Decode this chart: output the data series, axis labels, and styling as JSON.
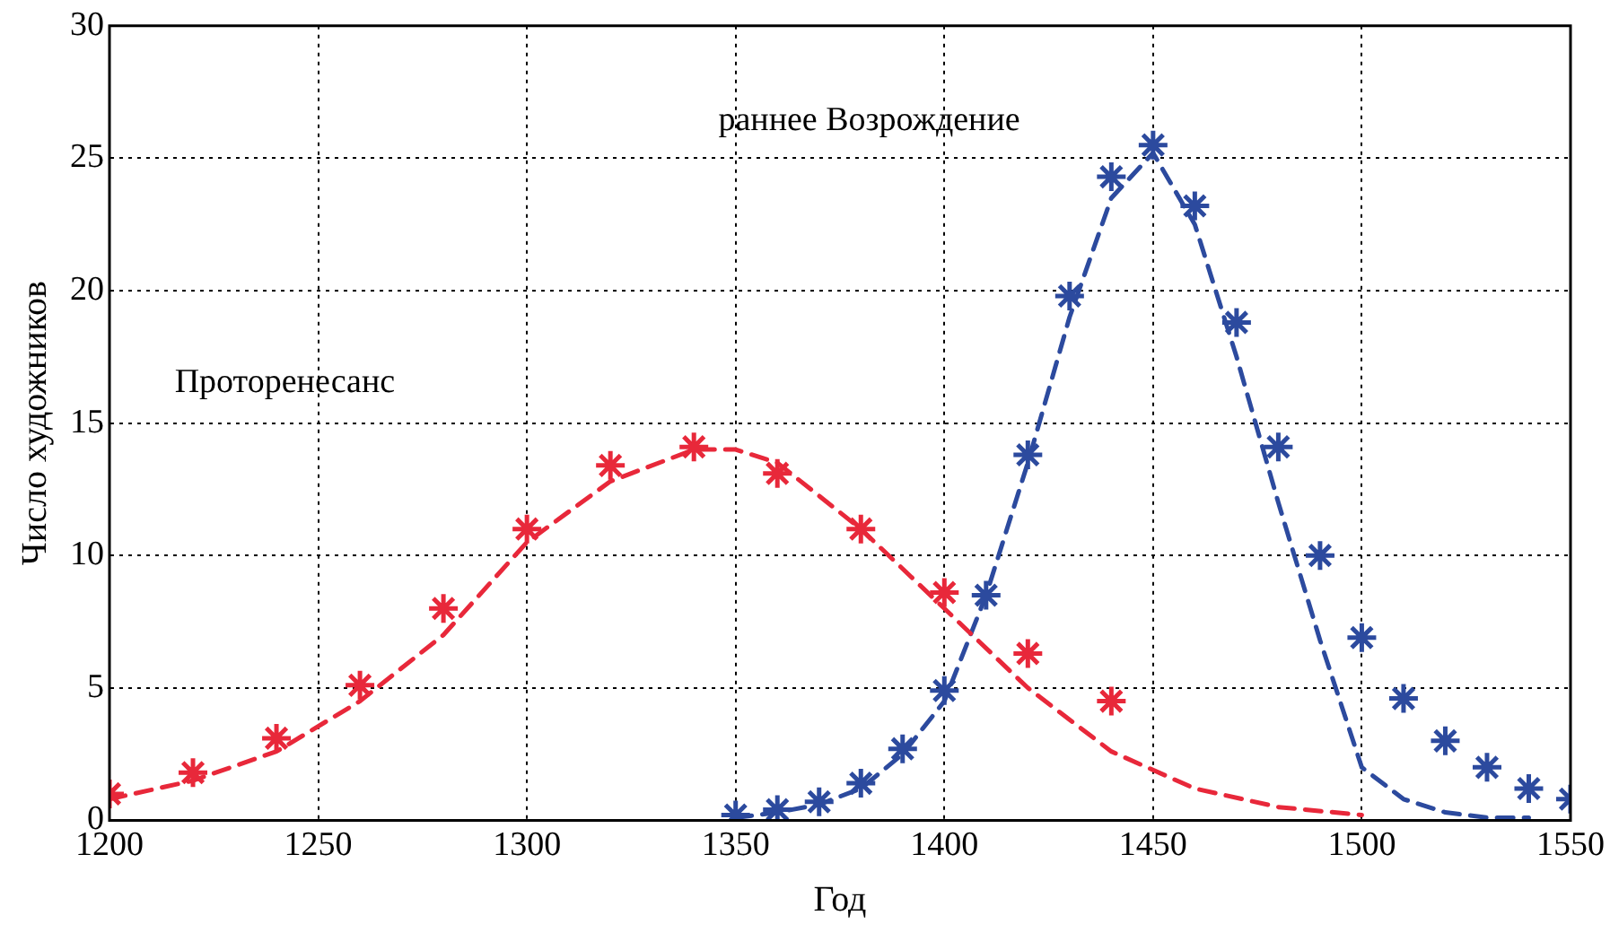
{
  "chart_data": {
    "type": "scatter",
    "xlabel": "Год",
    "ylabel": "Число художников",
    "xlim": [
      1200,
      1550
    ],
    "ylim": [
      0,
      30
    ],
    "xticks": [
      1200,
      1250,
      1300,
      1350,
      1400,
      1450,
      1500,
      1550
    ],
    "yticks": [
      0,
      5,
      10,
      15,
      20,
      25,
      30
    ],
    "grid": true,
    "annotations": [
      "раннее Возрождение",
      "Проторенесанс"
    ],
    "series": [
      {
        "type": "line",
        "line_style": "dashed",
        "marker": "none",
        "color": "#e8283a",
        "x": [
          1200,
          1220,
          1240,
          1260,
          1280,
          1300,
          1320,
          1340,
          1350,
          1360,
          1380,
          1400,
          1420,
          1440,
          1460,
          1480,
          1500
        ],
        "values": [
          0.8,
          1.5,
          2.6,
          4.5,
          7,
          10.5,
          12.8,
          14,
          14,
          13.5,
          11,
          8,
          5,
          2.6,
          1.2,
          0.5,
          0.2
        ]
      },
      {
        "type": "line",
        "line_style": "dashed",
        "marker": "none",
        "color": "#2c4a9e",
        "x": [
          1350,
          1360,
          1370,
          1380,
          1390,
          1400,
          1410,
          1420,
          1430,
          1440,
          1450,
          1460,
          1470,
          1480,
          1490,
          1500,
          1510,
          1520,
          1530,
          1540
        ],
        "values": [
          0.1,
          0.3,
          0.6,
          1.2,
          2.5,
          4.5,
          8.5,
          13.5,
          19,
          23.5,
          25.2,
          22.5,
          17.5,
          12,
          6.8,
          2,
          0.8,
          0.3,
          0.1,
          0.1
        ]
      },
      {
        "type": "scatter",
        "marker": "cross",
        "color": "#e8283a",
        "x": [
          1200,
          1220,
          1240,
          1260,
          1280,
          1300,
          1320,
          1340,
          1360,
          1380,
          1400,
          1420,
          1440
        ],
        "values": [
          1,
          1.8,
          3.1,
          5.1,
          8,
          11,
          13.4,
          14.1,
          13.1,
          11,
          8.6,
          6.3,
          4.5
        ]
      },
      {
        "type": "scatter",
        "marker": "cross",
        "color": "#2c4a9e",
        "x": [
          1350,
          1360,
          1370,
          1380,
          1390,
          1400,
          1410,
          1420,
          1430,
          1440,
          1450,
          1460,
          1470,
          1480,
          1490,
          1500,
          1510,
          1520,
          1530,
          1540,
          1550
        ],
        "values": [
          0.2,
          0.4,
          0.7,
          1.4,
          2.7,
          4.9,
          8.5,
          13.8,
          19.8,
          24.3,
          25.5,
          23.2,
          18.8,
          14.1,
          10,
          6.9,
          4.6,
          3,
          2,
          1.2,
          0.8
        ]
      }
    ]
  }
}
